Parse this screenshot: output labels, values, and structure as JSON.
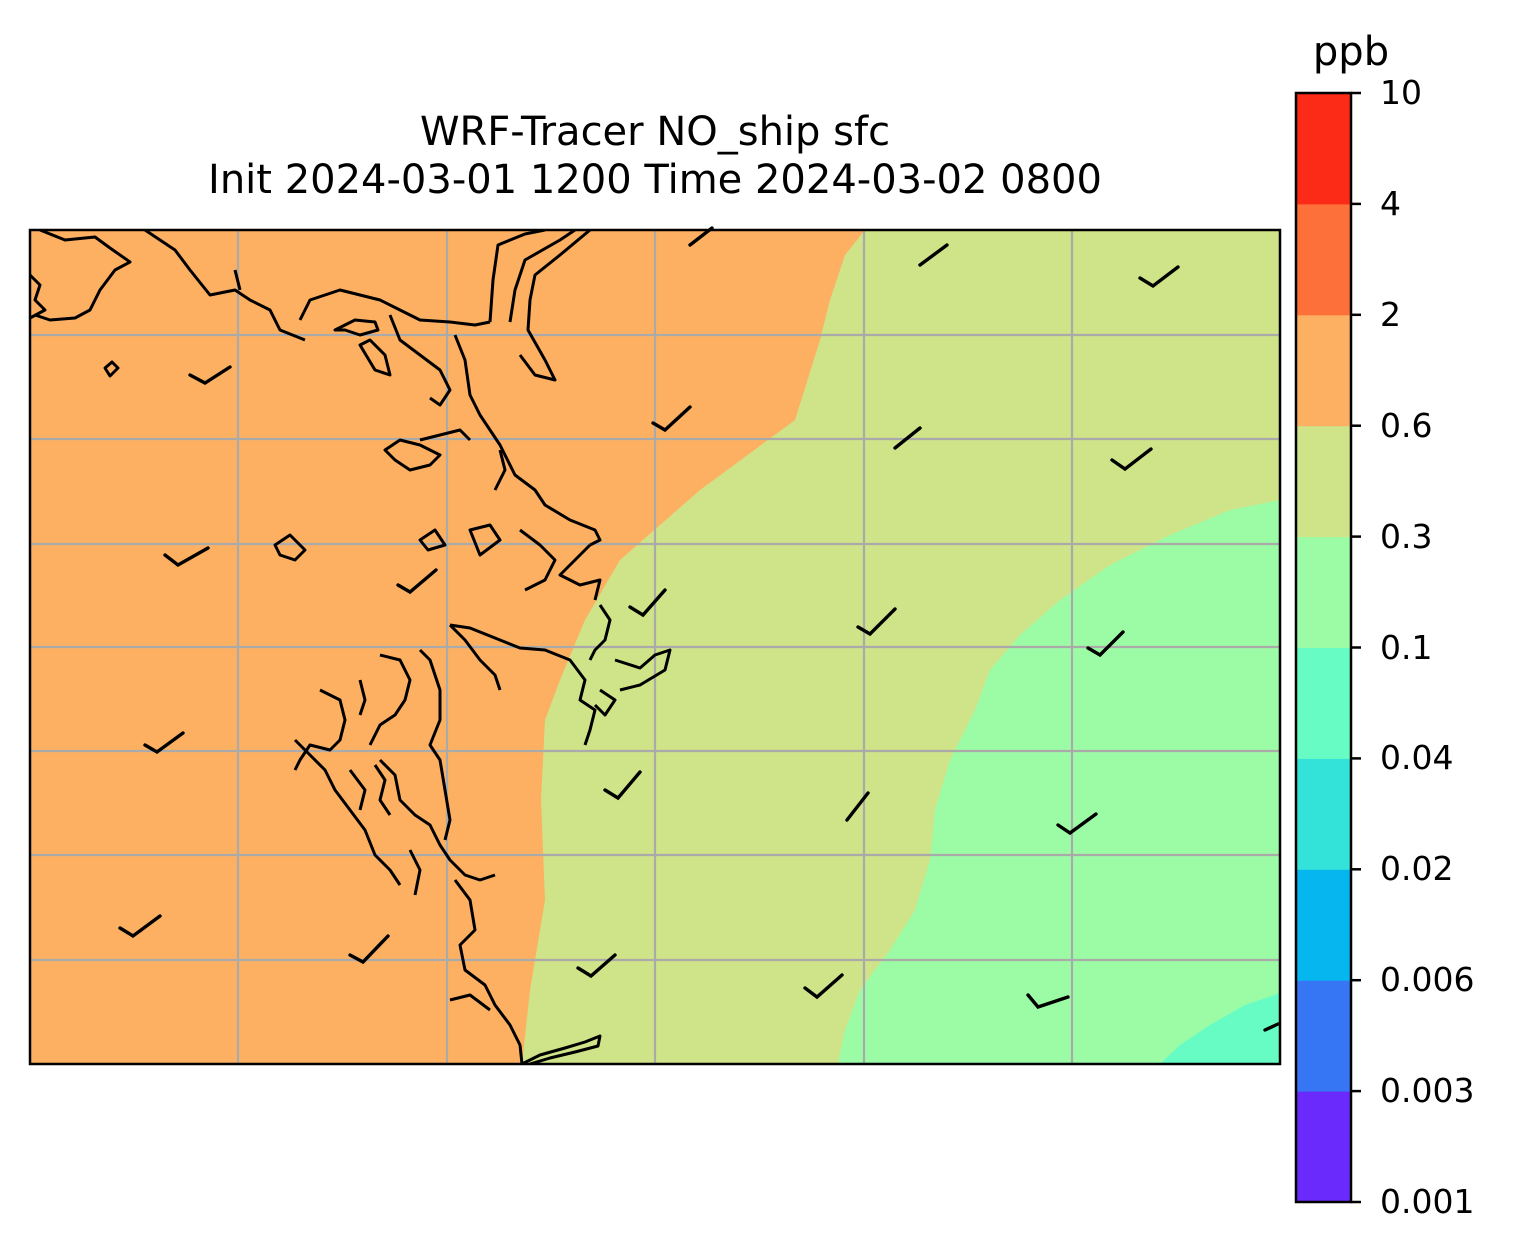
{
  "title": {
    "line1": "WRF-Tracer NO_ship sfc",
    "line2": "Init 2024-03-01 1200 Time 2024-03-02 0800"
  },
  "colorbar": {
    "unit": "ppb",
    "ticks": [
      "0.001",
      "0.003",
      "0.006",
      "0.02",
      "0.04",
      "0.1",
      "0.3",
      "0.6",
      "2",
      "4",
      "10"
    ],
    "colors": [
      "#6a2afc",
      "#3676f5",
      "#05b6ef",
      "#33e2d9",
      "#66fcc4",
      "#9cfca6",
      "#cfe388",
      "#fdb062",
      "#fd7039",
      "#fc2b17"
    ]
  },
  "map_legend": {
    "field": "tracer concentration filled contours",
    "visible_levels": [
      "0.04-0.1",
      "0.1-0.3",
      "0.3-0.6",
      "0.6-2"
    ],
    "wind": "wind barbs",
    "coastline": "#000000",
    "gridlines": "#aaaaaa"
  }
}
